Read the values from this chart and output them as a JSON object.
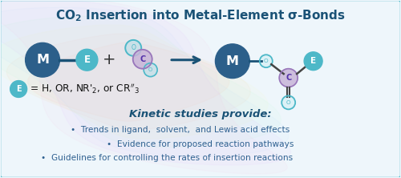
{
  "title_part1": "CO",
  "title_part2": " Insertion into Metal-Element ",
  "title_color": "#1a5276",
  "bg_color": "#eef6fb",
  "border_color": "#4ab8c8",
  "dark_blue": "#2c5f8a",
  "teal": "#4db8c8",
  "light_teal": "#a8dce8",
  "very_light_teal": "#d8f0f5",
  "lavender": "#c8b4d8",
  "lavender_border": "#9977bb",
  "arrow_color": "#1a5276",
  "bond_color": "#1a5276",
  "bond_color2": "#444444",
  "white": "#ffffff",
  "bullet_text_color": "#2e6090",
  "kinetic_color": "#1a5276",
  "kinetic_title": "Kinetic studies provide:",
  "bullet1": "Trends in ligand,  solvent,  and Lewis acid effects",
  "bullet2": "Evidence for proposed reaction pathways",
  "bullet3": "Guidelines for controlling the rates of insertion reactions"
}
